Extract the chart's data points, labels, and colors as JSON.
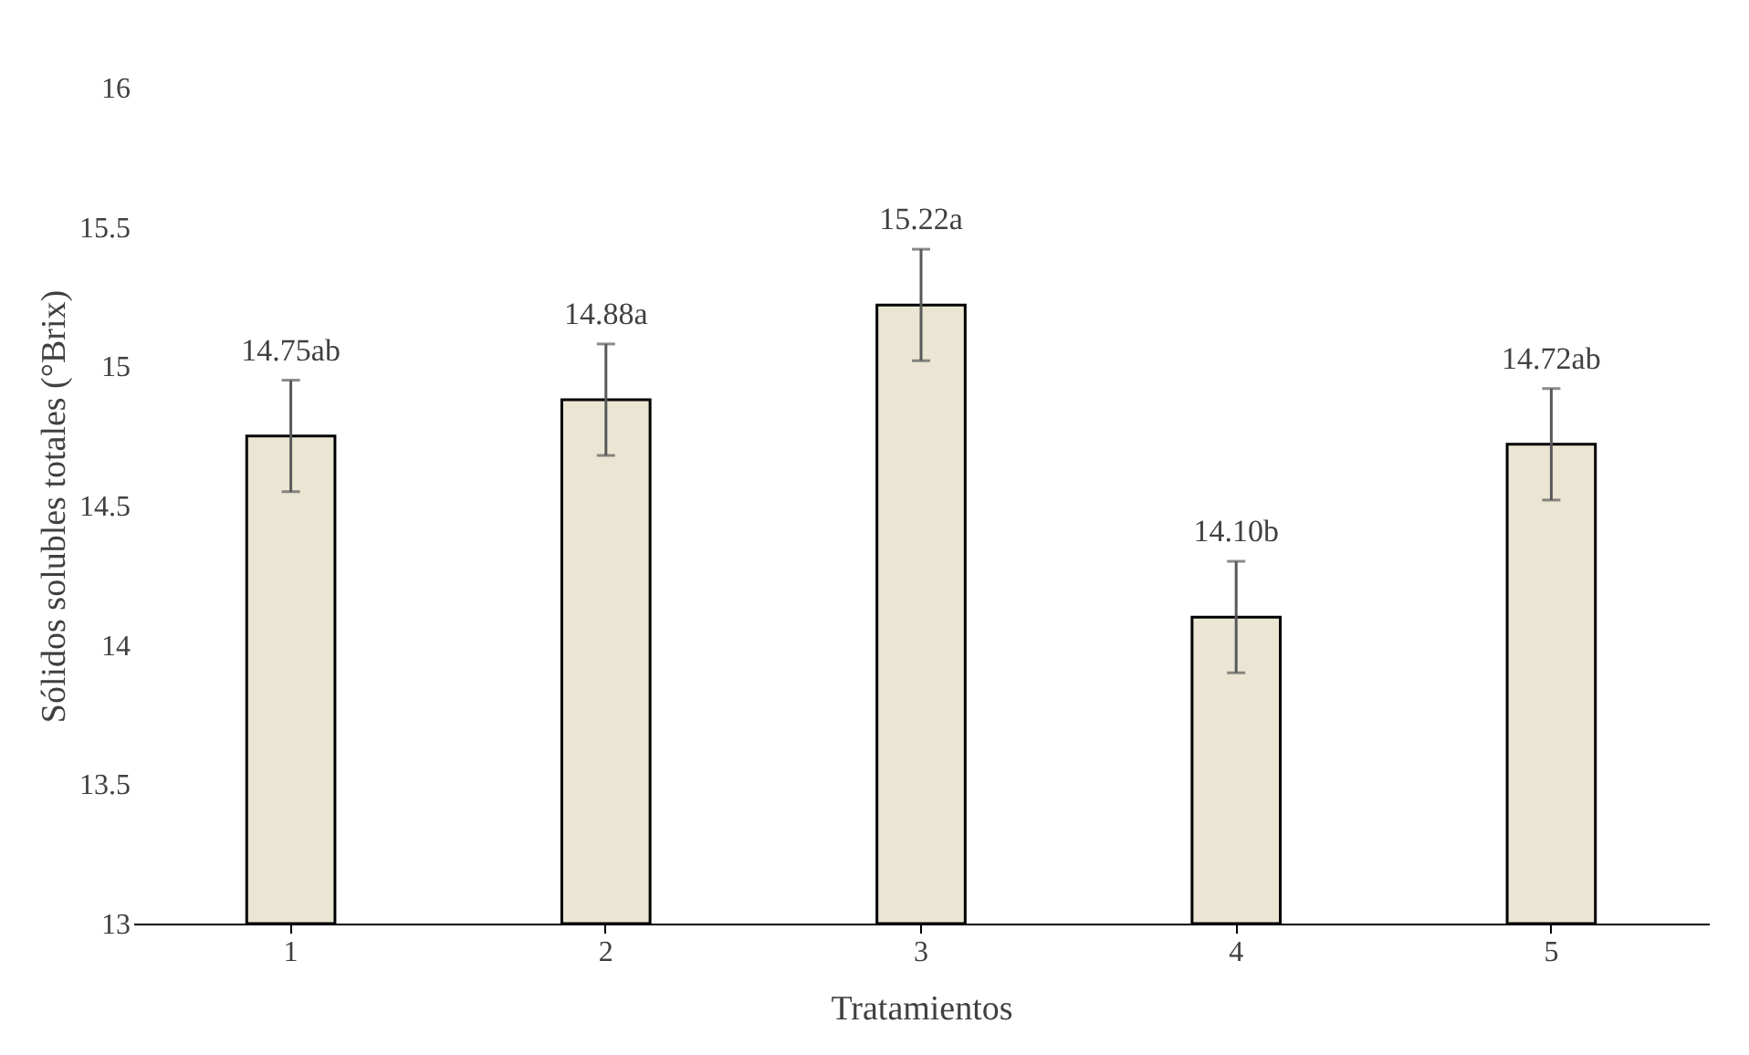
{
  "chart_data": {
    "type": "bar",
    "xlabel": "Tratamientos",
    "ylabel": "Sólidos solubles totales (°Brix)",
    "categories": [
      "1",
      "2",
      "3",
      "4",
      "5"
    ],
    "values": [
      14.75,
      14.88,
      15.22,
      14.1,
      14.72
    ],
    "value_labels": [
      "14.75ab",
      "14.88a",
      "15.22a",
      "14.10b",
      "14.72ab"
    ],
    "errors": [
      0.2,
      0.2,
      0.2,
      0.2,
      0.2
    ],
    "colors": [
      "#ebe6d4",
      "#ebe6d4",
      "#ebe6d4",
      "#ebe6d4",
      "#ebe6d4"
    ],
    "ylim": [
      13,
      16
    ],
    "yticks": [
      13,
      13.5,
      14,
      14.5,
      15,
      15.5,
      16
    ],
    "grid": false
  }
}
